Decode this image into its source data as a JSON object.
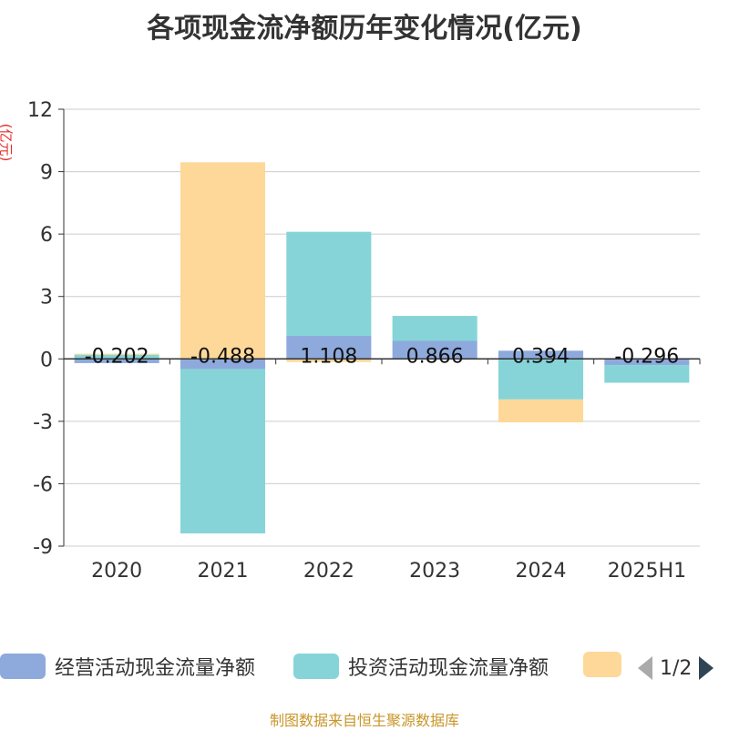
{
  "title": "各项现金流净额历年变化情况(亿元)",
  "unit_label": "(亿元)",
  "footer": "制图数据来自恒生聚源数据库",
  "legend": {
    "items": [
      {
        "label": "经营活动现金流量净额",
        "color": "#8eaadc"
      },
      {
        "label": "投资活动现金流量净额",
        "color": "#86d4d8"
      },
      {
        "label": "",
        "color": "#fdd898"
      }
    ],
    "page": "1/2"
  },
  "chart_data": {
    "type": "bar",
    "stacked": true,
    "categories": [
      "2020",
      "2021",
      "2022",
      "2023",
      "2024",
      "2025H1"
    ],
    "ylim": [
      -9,
      12
    ],
    "yticks": [
      12,
      9,
      6,
      3,
      0,
      -3,
      -6,
      -9
    ],
    "grid": true,
    "legend_position": "bottom",
    "series": [
      {
        "name": "经营活动现金流量净额",
        "color": "#8eaadc",
        "values": [
          -0.202,
          -0.488,
          1.108,
          0.866,
          0.394,
          -0.296
        ]
      },
      {
        "name": "投资活动现金流量净额",
        "color": "#86d4d8",
        "values": [
          0.2,
          -7.9,
          5.0,
          1.2,
          -1.95,
          -0.85
        ]
      },
      {
        "color": "#fdd898",
        "values": [
          0.05,
          9.45,
          -0.15,
          0,
          -1.1,
          0
        ]
      }
    ],
    "data_labels": [
      "-0.202",
      "-0.488",
      "1.108",
      "0.866",
      "0.394",
      "-0.296"
    ]
  }
}
